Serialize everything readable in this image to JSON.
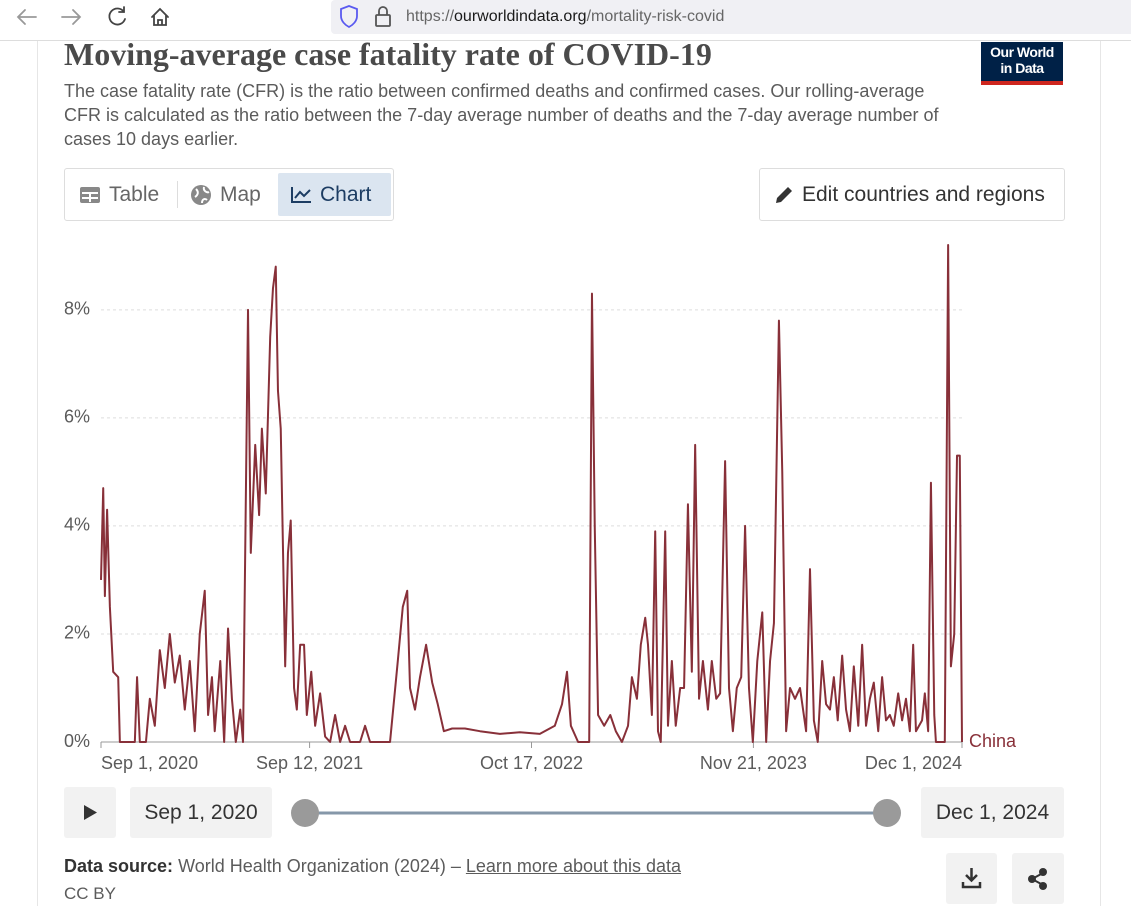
{
  "browser": {
    "url": {
      "scheme": "https://",
      "domain": "ourworldindata.org",
      "path": "/mortality-risk-covid"
    }
  },
  "header": {
    "title": "Moving-average case fatality rate of COVID-19",
    "subtitle": "The case fatality rate (CFR) is the ratio between confirmed deaths and confirmed cases. Our rolling-average CFR is calculated as the ratio between the 7-day average number of deaths and the 7-day average number of cases 10 days earlier.",
    "logo": [
      "Our World",
      "in Data"
    ]
  },
  "tabs": [
    "Table",
    "Map",
    "Chart"
  ],
  "edit_button": "Edit countries and regions",
  "chart_data": {
    "type": "line",
    "x": [
      "2020-09-01",
      "2020-09-05",
      "2020-09-08",
      "2020-09-12",
      "2020-09-17",
      "2020-09-23",
      "2020-10-02",
      "2020-10-05",
      "2020-11-01",
      "2020-11-05",
      "2020-11-10",
      "2020-11-21",
      "2020-11-28",
      "2020-12-07",
      "2020-12-16",
      "2020-12-25",
      "2021-01-03",
      "2021-01-12",
      "2021-01-21",
      "2021-01-30",
      "2021-02-08",
      "2021-02-17",
      "2021-02-26",
      "2021-03-07",
      "2021-03-13",
      "2021-03-20",
      "2021-03-25",
      "2021-04-04",
      "2021-04-11",
      "2021-04-18",
      "2021-04-25",
      "2021-05-02",
      "2021-05-10",
      "2021-05-15",
      "2021-05-24",
      "2021-05-29",
      "2021-06-06",
      "2021-06-13",
      "2021-06-18",
      "2021-06-25",
      "2021-07-03",
      "2021-07-08",
      "2021-07-13",
      "2021-07-17",
      "2021-07-22",
      "2021-07-30",
      "2021-08-04",
      "2021-08-09",
      "2021-08-15",
      "2021-08-20",
      "2021-08-26",
      "2021-09-02",
      "2021-09-07",
      "2021-09-15",
      "2021-09-22",
      "2021-10-01",
      "2021-10-10",
      "2021-10-19",
      "2021-10-28",
      "2021-11-06",
      "2021-11-15",
      "2021-11-24",
      "2021-12-12",
      "2021-12-21",
      "2021-12-30",
      "2022-02-04",
      "2022-02-18",
      "2022-02-27",
      "2022-03-07",
      "2022-03-12",
      "2022-03-21",
      "2022-03-30",
      "2022-04-10",
      "2022-04-21",
      "2022-05-01",
      "2022-05-12",
      "2022-05-27",
      "2022-06-19",
      "2022-07-16",
      "2022-08-21",
      "2022-09-26",
      "2022-11-01",
      "2022-11-28",
      "2022-12-11",
      "2022-12-20",
      "2022-12-27",
      "2023-01-09",
      "2023-01-29",
      "2023-02-03",
      "2023-02-08",
      "2023-02-14",
      "2023-02-25",
      "2023-03-08",
      "2023-03-18",
      "2023-03-29",
      "2023-04-09",
      "2023-04-16",
      "2023-04-25",
      "2023-05-02",
      "2023-05-10",
      "2023-05-15",
      "2023-05-22",
      "2023-05-28",
      "2023-06-02",
      "2023-06-07",
      "2023-06-15",
      "2023-06-20",
      "2023-06-27",
      "2023-07-04",
      "2023-07-12",
      "2023-07-19",
      "2023-07-26",
      "2023-08-02",
      "2023-08-08",
      "2023-08-15",
      "2023-08-22",
      "2023-08-31",
      "2023-09-07",
      "2023-09-15",
      "2023-09-22",
      "2023-10-01",
      "2023-10-08",
      "2023-10-15",
      "2023-10-22",
      "2023-10-30",
      "2023-11-06",
      "2023-11-13",
      "2023-11-20",
      "2023-11-28",
      "2023-12-07",
      "2023-12-14",
      "2023-12-21",
      "2023-12-28",
      "2024-01-06",
      "2024-01-12",
      "2024-01-19",
      "2024-01-26",
      "2024-02-04",
      "2024-02-13",
      "2024-02-24",
      "2024-03-02",
      "2024-03-09",
      "2024-03-16",
      "2024-03-24",
      "2024-03-31",
      "2024-04-07",
      "2024-04-14",
      "2024-04-21",
      "2024-04-29",
      "2024-05-06",
      "2024-05-13",
      "2024-05-20",
      "2024-05-28",
      "2024-06-04",
      "2024-06-11",
      "2024-06-18",
      "2024-06-25",
      "2024-07-03",
      "2024-07-10",
      "2024-07-17",
      "2024-07-24",
      "2024-07-31",
      "2024-08-08",
      "2024-08-15",
      "2024-08-22",
      "2024-08-29",
      "2024-09-04",
      "2024-09-09",
      "2024-09-20",
      "2024-09-25",
      "2024-10-01",
      "2024-10-06",
      "2024-10-12",
      "2024-10-15",
      "2024-10-31",
      "2024-11-06",
      "2024-11-11",
      "2024-11-17",
      "2024-11-22",
      "2024-11-27",
      "2024-12-01"
    ],
    "series": [
      {
        "name": "China",
        "color": "#883039",
        "values": [
          3.0,
          4.7,
          2.7,
          4.3,
          2.5,
          1.3,
          1.2,
          0,
          0,
          1.2,
          0,
          0,
          0.8,
          0.3,
          1.7,
          1.0,
          2.0,
          1.1,
          1.6,
          0.6,
          1.5,
          0.2,
          2.0,
          2.8,
          0.5,
          1.2,
          0.2,
          1.5,
          0,
          2.1,
          0.8,
          0,
          0.6,
          0,
          8.0,
          3.5,
          5.5,
          4.2,
          5.8,
          4.6,
          7.5,
          8.4,
          8.8,
          6.5,
          5.8,
          1.4,
          3.5,
          4.1,
          1.0,
          0.6,
          1.8,
          1.8,
          0.5,
          1.3,
          0.3,
          0.9,
          0.1,
          0,
          0.5,
          0,
          0.3,
          0,
          0,
          0.3,
          0,
          0,
          1.5,
          2.5,
          2.8,
          1.0,
          0.6,
          1.2,
          1.8,
          1.1,
          0.7,
          0.2,
          0.25,
          0.25,
          0.2,
          0.15,
          0.18,
          0.15,
          0.3,
          0.7,
          1.3,
          0.3,
          0,
          0,
          8.3,
          4.0,
          0.5,
          0.3,
          0.5,
          0.2,
          0,
          0.3,
          1.2,
          0.8,
          1.8,
          2.3,
          1.8,
          0.5,
          3.9,
          0.2,
          0,
          3.9,
          0.3,
          1.5,
          0.3,
          1.0,
          1.0,
          4.4,
          1.3,
          5.5,
          0.8,
          1.5,
          0.6,
          1.5,
          0.8,
          0.9,
          5.2,
          1.0,
          0.2,
          1.0,
          1.2,
          4.0,
          1.0,
          0,
          1.5,
          2.4,
          0,
          1.5,
          2.2,
          7.8,
          5.0,
          0.2,
          1.0,
          0.8,
          1.0,
          0.2,
          3.2,
          0.4,
          0,
          1.5,
          0.7,
          0.6,
          1.2,
          0.4,
          1.6,
          0.6,
          0.2,
          1.4,
          0.3,
          1.8,
          0.3,
          0.8,
          1.1,
          0.2,
          1.2,
          0.4,
          0.5,
          0.3,
          0.9,
          0.4,
          0.8,
          0.2,
          1.8,
          0.2,
          0.4,
          0.9,
          0.2,
          4.8,
          0.5,
          0,
          0,
          9.2,
          1.4,
          2.0,
          5.3,
          5.3,
          0
        ]
      }
    ],
    "xlim": [
      "2020-09-01",
      "2024-12-01"
    ],
    "xticks": [
      {
        "value": "2020-09-01",
        "label": "Sep 1, 2020"
      },
      {
        "value": "2021-09-12",
        "label": "Sep 12, 2021"
      },
      {
        "value": "2022-10-17",
        "label": "Oct 17, 2022"
      },
      {
        "value": "2023-11-21",
        "label": "Nov 21, 2023"
      },
      {
        "value": "2024-12-01",
        "label": "Dec 1, 2024"
      }
    ],
    "ylim": [
      0,
      9.2
    ],
    "yticks": [
      {
        "value": 0,
        "label": "0%"
      },
      {
        "value": 2,
        "label": "2%"
      },
      {
        "value": 4,
        "label": "4%"
      },
      {
        "value": 6,
        "label": "6%"
      },
      {
        "value": 8,
        "label": "8%"
      }
    ],
    "grid": true
  },
  "timeline": {
    "start": "Sep 1, 2020",
    "end": "Dec 1, 2024"
  },
  "footer": {
    "source_label": "Data source:",
    "source": "World Health Organization (2024) –",
    "link": "Learn more about this data",
    "license": "CC BY"
  }
}
